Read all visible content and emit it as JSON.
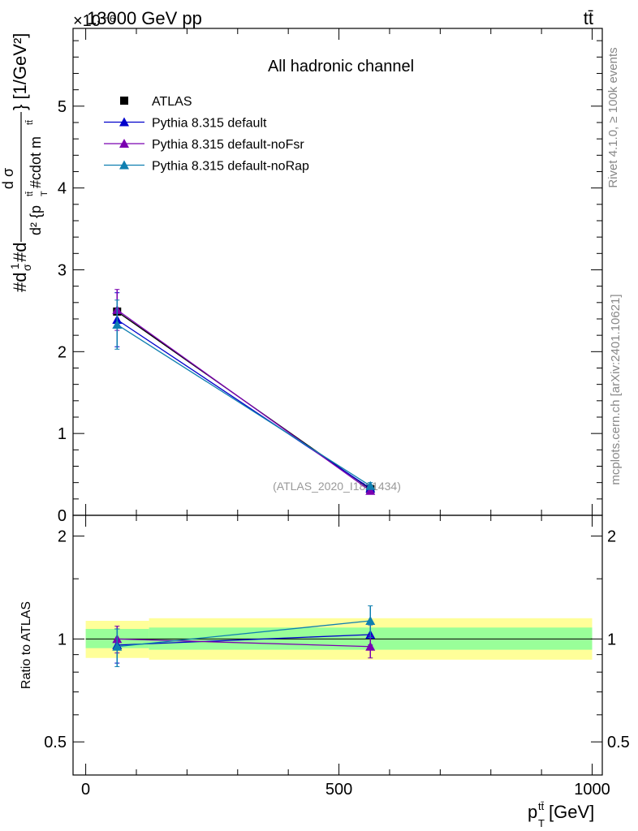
{
  "header": {
    "energy_label": "13000 GeV pp",
    "process_label": "tt̄",
    "exponent_label": "×10⁻⁶"
  },
  "side_labels": {
    "rivet": "Rivet 4.1.0, ≥ 100k events",
    "mcplots": "mcplots.cern.ch [arXiv:2401.10621]"
  },
  "colors": {
    "atlas": "#000000",
    "default": "#0000cc",
    "noFsr": "#7a00b0",
    "noRap": "#0f7fb0",
    "band_yellow": "#ffff99",
    "band_green": "#99ff99"
  },
  "chart_data": [
    {
      "type": "scatter",
      "panel": "main",
      "title": "All hadronic channel",
      "watermark": "(ATLAS_2020_I1801434)",
      "ylabel": "#d¹⁄σ#d d²σᵗᵗ / d²{p_T^{tt̄} #cdot m^{tt̄}} [1/GeV²]",
      "ylabel_parts": {
        "lead": "#d",
        "frac_num": "1",
        "frac_den": "σ",
        "mid": "#d",
        "num": "d σ",
        "den": "d² {p",
        "den_sup": "tt̄",
        "den_sub": "T",
        "den_tail": " #cdot m",
        "den_tail_sup": "tt̄",
        "close": "} [1/GeV²]"
      },
      "ylim": [
        0,
        5.95
      ],
      "scale": "1e-6",
      "y_ticks": [
        0,
        1,
        2,
        3,
        4,
        5
      ],
      "y_tick_labels": [
        "0",
        "1",
        "2",
        "3",
        "4",
        "5"
      ],
      "legend_position": "top-left",
      "series": [
        {
          "name": "ATLAS",
          "marker": "square",
          "color_key": "atlas",
          "points": [
            {
              "x": 62,
              "y": 2.49
            },
            {
              "x": 562,
              "y": 0.32
            }
          ]
        },
        {
          "name": "Pythia 8.315 default",
          "marker": "triangle",
          "color_key": "default",
          "points": [
            {
              "x": 62,
              "y": 2.39,
              "err": 0.33
            },
            {
              "x": 562,
              "y": 0.33,
              "err": 0.03
            }
          ]
        },
        {
          "name": "Pythia 8.315 default-noFsr",
          "marker": "triangle",
          "color_key": "noFsr",
          "points": [
            {
              "x": 62,
              "y": 2.51,
              "err": 0.25
            },
            {
              "x": 562,
              "y": 0.3,
              "err": 0.03
            }
          ]
        },
        {
          "name": "Pythia 8.315 default-noRap",
          "marker": "triangle",
          "color_key": "noRap",
          "points": [
            {
              "x": 62,
              "y": 2.33,
              "err": 0.3
            },
            {
              "x": 562,
              "y": 0.36,
              "err": 0.04
            }
          ]
        }
      ]
    },
    {
      "type": "scatter",
      "panel": "ratio",
      "ylabel": "Ratio to ATLAS",
      "xlabel": "p_T^{tt̄} [GeV]",
      "xlabel_parts": {
        "main": "p",
        "sup": "tt̄",
        "sub": "T",
        "unit": " [GeV]"
      },
      "xlim": [
        -25,
        1020
      ],
      "x_ticks": [
        0,
        500,
        1000
      ],
      "x_tick_labels": [
        "0",
        "500",
        "1000"
      ],
      "ylim": [
        0.4,
        2.3
      ],
      "y_ticks": [
        0.5,
        1,
        2
      ],
      "y_tick_labels": [
        "0.5",
        "1",
        "2"
      ],
      "bands": [
        {
          "x0": 0,
          "x1": 125,
          "yellow": [
            0.88,
            1.13
          ],
          "green": [
            0.94,
            1.07
          ]
        },
        {
          "x0": 125,
          "x1": 1000,
          "yellow": [
            0.87,
            1.15
          ],
          "green": [
            0.93,
            1.08
          ]
        }
      ],
      "series": [
        {
          "name": "Pythia 8.315 default",
          "color_key": "default",
          "points": [
            {
              "x": 62,
              "y": 0.96,
              "err": 0.11
            },
            {
              "x": 562,
              "y": 1.03,
              "err": 0.07
            }
          ]
        },
        {
          "name": "Pythia 8.315 default-noFsr",
          "color_key": "noFsr",
          "points": [
            {
              "x": 62,
              "y": 1.0,
              "err": 0.09
            },
            {
              "x": 562,
              "y": 0.95,
              "err": 0.07
            }
          ]
        },
        {
          "name": "Pythia 8.315 default-noRap",
          "color_key": "noRap",
          "points": [
            {
              "x": 62,
              "y": 0.95,
              "err": 0.12
            },
            {
              "x": 562,
              "y": 1.13,
              "err": 0.12
            }
          ]
        }
      ]
    }
  ]
}
